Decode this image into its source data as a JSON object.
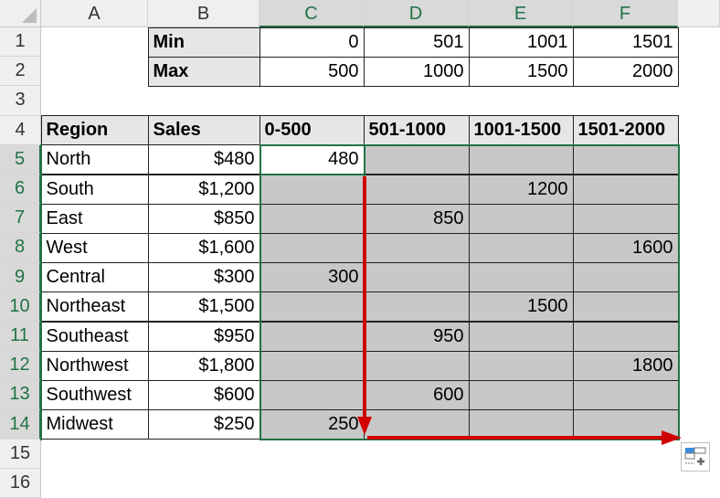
{
  "columns": [
    "A",
    "B",
    "C",
    "D",
    "E",
    "F"
  ],
  "rows": [
    "1",
    "2",
    "3",
    "4",
    "5",
    "6",
    "7",
    "8",
    "9",
    "10",
    "11",
    "12",
    "13",
    "14",
    "15",
    "16"
  ],
  "bins": {
    "labels": [
      "Min",
      "Max"
    ],
    "min": [
      "0",
      "501",
      "1001",
      "1501"
    ],
    "max": [
      "500",
      "1000",
      "1500",
      "2000"
    ]
  },
  "table": {
    "headers": [
      "Region",
      "Sales",
      "0-500",
      "501-1000",
      "1001-1500",
      "1501-2000"
    ],
    "data": [
      [
        "North",
        "$480",
        "480",
        "",
        "",
        ""
      ],
      [
        "South",
        "$1,200",
        "",
        "",
        "1200",
        ""
      ],
      [
        "East",
        "$850",
        "",
        "850",
        "",
        ""
      ],
      [
        "West",
        "$1,600",
        "",
        "",
        "",
        "1600"
      ],
      [
        "Central",
        "$300",
        "300",
        "",
        "",
        ""
      ],
      [
        "Northeast",
        "$1,500",
        "",
        "",
        "1500",
        ""
      ],
      [
        "Southeast",
        "$950",
        "",
        "950",
        "",
        ""
      ],
      [
        "Northwest",
        "$1,800",
        "",
        "",
        "",
        "1800"
      ],
      [
        "Southwest",
        "$600",
        "",
        "600",
        "",
        ""
      ],
      [
        "Midwest",
        "$250",
        "250",
        "",
        "",
        ""
      ]
    ]
  },
  "colors": {
    "selection": "#217346",
    "fill": "#c8c8c8",
    "arrow": "#d00000"
  },
  "icons": {
    "quick_analysis": "quick-analysis-icon"
  }
}
